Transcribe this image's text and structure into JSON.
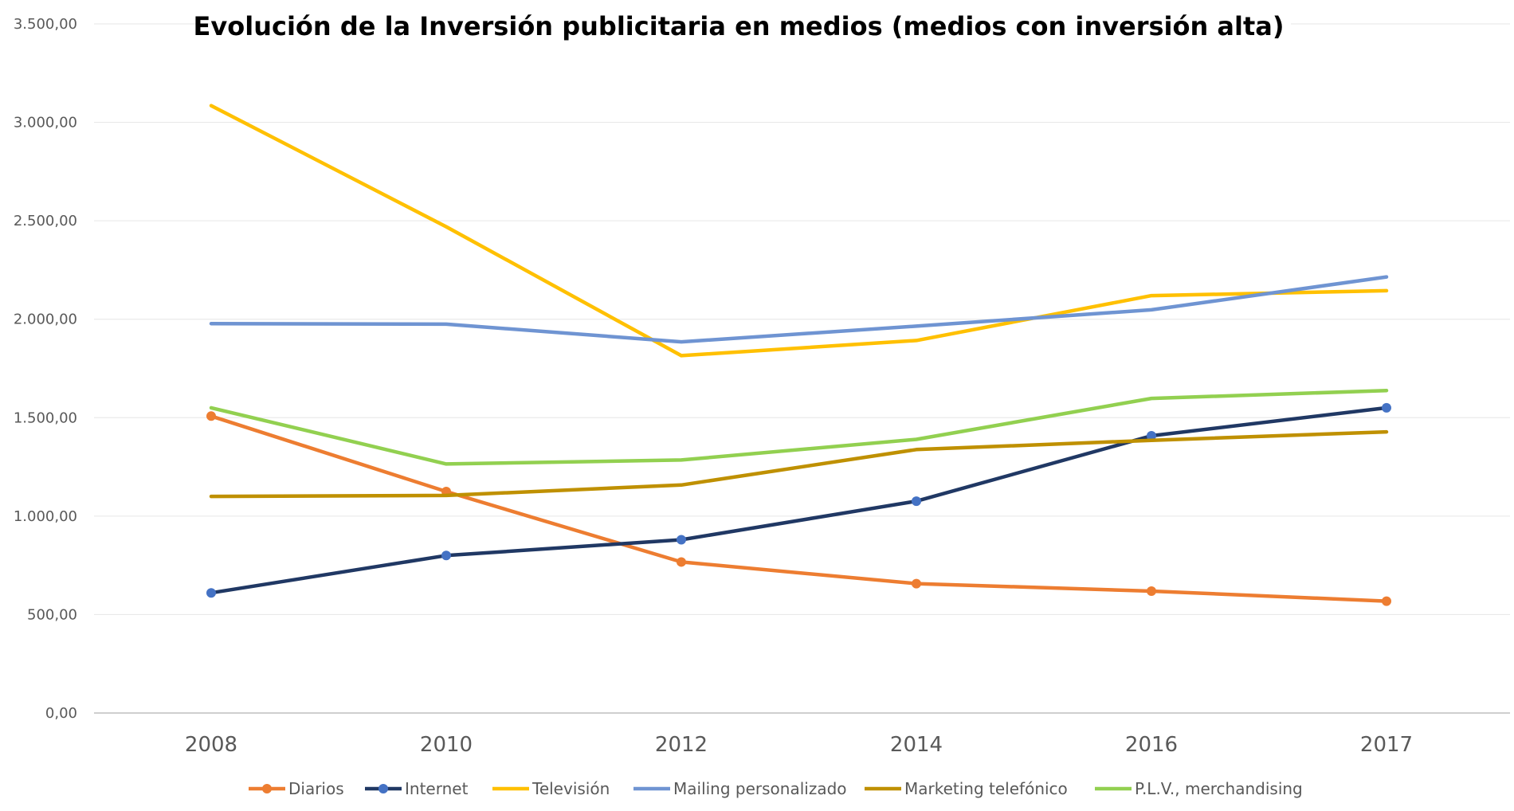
{
  "chart_data": {
    "type": "line",
    "title": "Evolución de la Inversión publicitaria en medios (medios con inversión alta)",
    "xlabel": "",
    "ylabel": "",
    "categories": [
      "2008",
      "2010",
      "2012",
      "2014",
      "2016",
      "2017"
    ],
    "ylim": [
      0,
      3500
    ],
    "y_ticks": [
      "0,00",
      "500,00",
      "1.000,00",
      "1.500,00",
      "2.000,00",
      "2.500,00",
      "3.000,00",
      "3.500,00"
    ],
    "grid": true,
    "legend_position": "bottom",
    "series": [
      {
        "name": "Diarios",
        "color": "#ED7D31",
        "markers": true,
        "values": [
          1508,
          1125,
          767,
          657,
          619,
          568
        ]
      },
      {
        "name": "Internet",
        "color": "#203864",
        "marker_color": "#4472C4",
        "markers": true,
        "values": [
          610,
          800,
          880,
          1076,
          1408,
          1550
        ]
      },
      {
        "name": "Televisión",
        "color": "#FFC000",
        "markers": false,
        "values": [
          3085,
          2470,
          1815,
          1892,
          2120,
          2145
        ]
      },
      {
        "name": "Mailing personalizado",
        "color": "#6F94D2",
        "markers": false,
        "values": [
          1978,
          1975,
          1885,
          1965,
          2048,
          2215
        ]
      },
      {
        "name": "Marketing telefónico",
        "color": "#BF9000",
        "markers": false,
        "values": [
          1100,
          1105,
          1158,
          1338,
          1385,
          1428
        ]
      },
      {
        "name": "P.L.V., merchandising",
        "color": "#92D050",
        "markers": false,
        "values": [
          1550,
          1265,
          1285,
          1390,
          1598,
          1638
        ]
      }
    ]
  }
}
